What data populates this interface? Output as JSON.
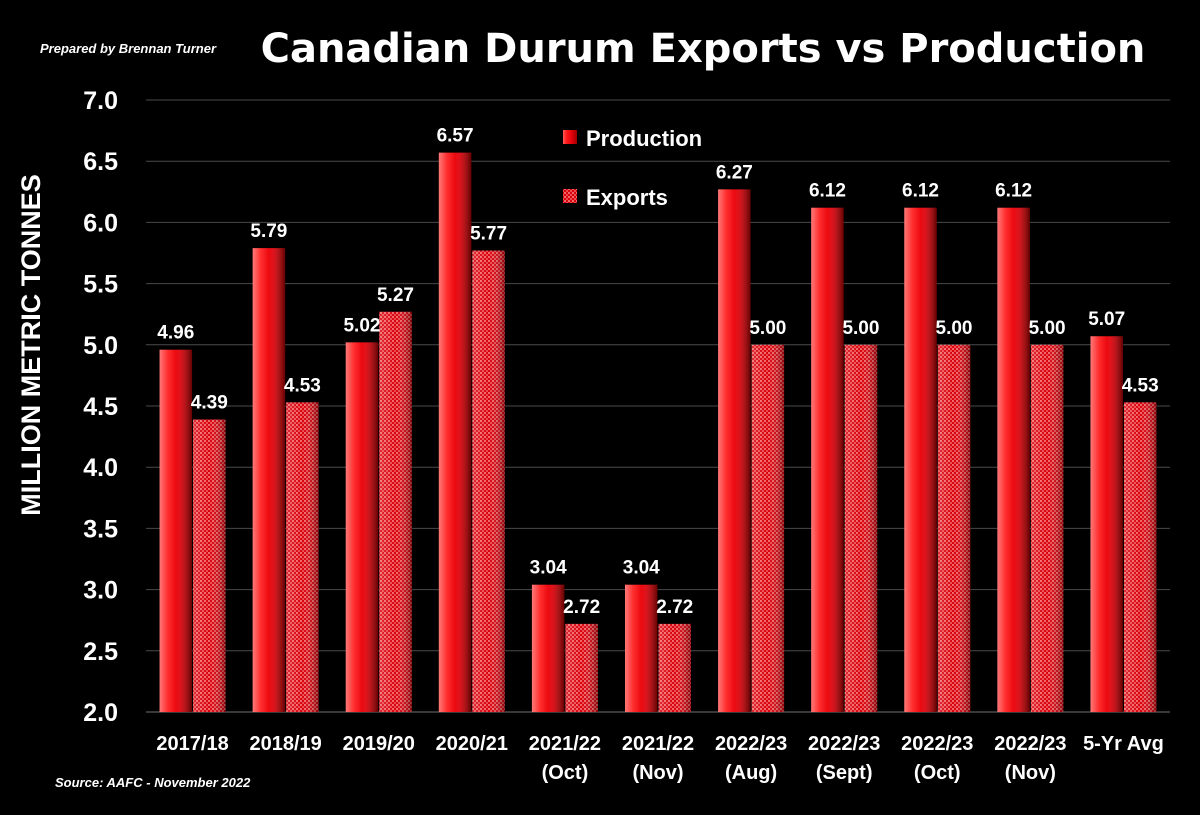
{
  "credit": "Prepared by Brennan Turner",
  "source": "Source: AAFC - November 2022",
  "chart_data": {
    "type": "bar",
    "title": "Canadian Durum Exports vs Production",
    "xlabel": "",
    "ylabel": "MILLION METRIC TONNES",
    "ylim": [
      2.0,
      7.0
    ],
    "yticks": [
      "7.0",
      "6.5",
      "6.0",
      "5.5",
      "5.0",
      "4.5",
      "4.0",
      "3.5",
      "3.0",
      "2.5",
      "2.0"
    ],
    "grid": true,
    "legend_position": "top-center",
    "categories": [
      [
        "2017/18"
      ],
      [
        "2018/19"
      ],
      [
        "2019/20"
      ],
      [
        "2020/21"
      ],
      [
        "2021/22",
        "(Oct)"
      ],
      [
        "2021/22",
        "(Nov)"
      ],
      [
        "2022/23",
        "(Aug)"
      ],
      [
        "2022/23",
        "(Sept)"
      ],
      [
        "2022/23",
        "(Oct)"
      ],
      [
        "2022/23",
        "(Nov)"
      ],
      [
        "5-Yr Avg"
      ]
    ],
    "series": [
      {
        "name": "Production",
        "values": [
          4.96,
          5.79,
          5.02,
          6.57,
          3.04,
          3.04,
          6.27,
          6.12,
          6.12,
          6.12,
          5.07
        ],
        "labels": [
          "4.96",
          "5.79",
          "5.02",
          "6.57",
          "3.04",
          "3.04",
          "6.27",
          "6.12",
          "6.12",
          "6.12",
          "5.07"
        ],
        "color": "#e8000b",
        "pattern": "solid"
      },
      {
        "name": "Exports",
        "values": [
          4.39,
          4.53,
          5.27,
          5.77,
          2.72,
          2.72,
          5.0,
          5.0,
          5.0,
          5.0,
          4.53
        ],
        "labels": [
          "4.39",
          "4.53",
          "5.27",
          "5.77",
          "2.72",
          "2.72",
          "5.00",
          "5.00",
          "5.00",
          "5.00",
          "4.53"
        ],
        "color": "#e8000b",
        "pattern": "dotted"
      }
    ]
  },
  "colors": {
    "background": "#000000",
    "grid": "#4a4a4a",
    "text": "#ffffff",
    "bar": "#e8000b"
  }
}
